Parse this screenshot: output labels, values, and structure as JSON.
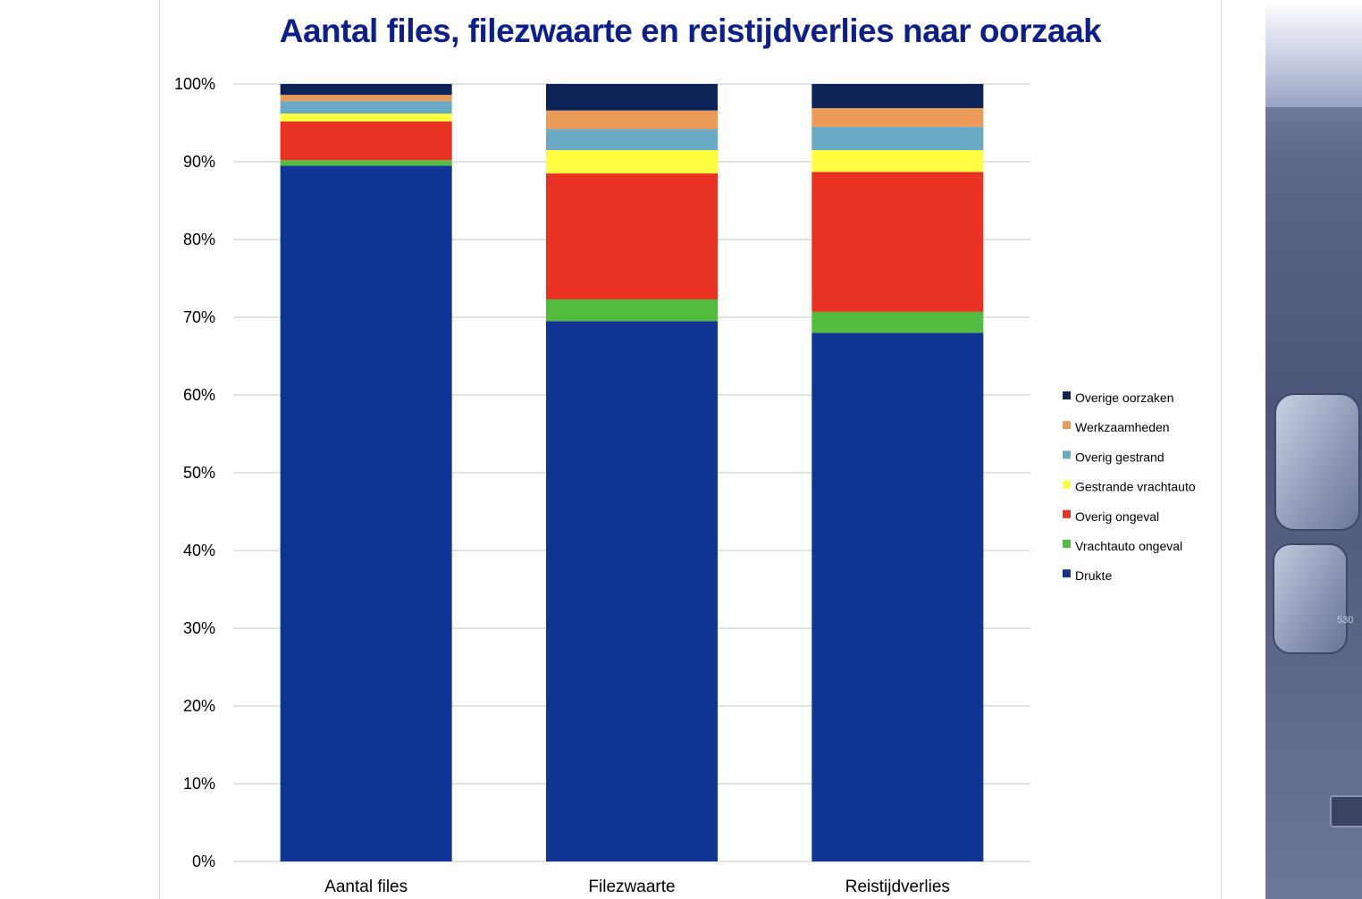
{
  "chart_data": {
    "type": "bar",
    "stacked": true,
    "title": "Aantal files, filezwaarte en reistijdverlies naar oorzaak",
    "categories": [
      "Aantal files",
      "Filezwaarte",
      "Reistijdverlies"
    ],
    "series": [
      {
        "name": "Drukte",
        "color": "#0f3494",
        "values": [
          89.5,
          69.5,
          68.0
        ]
      },
      {
        "name": "Vrachtauto ongeval",
        "color": "#52bd3d",
        "values": [
          0.7,
          2.8,
          2.7
        ]
      },
      {
        "name": "Overig ongeval",
        "color": "#ea3223",
        "values": [
          5.0,
          16.2,
          18.0
        ]
      },
      {
        "name": "Gestrande vrachtauto",
        "color": "#fdfe3f",
        "values": [
          1.0,
          3.0,
          2.8
        ]
      },
      {
        "name": "Overig gestrand",
        "color": "#6aa9c3",
        "values": [
          1.6,
          2.7,
          3.0
        ]
      },
      {
        "name": "Werkzaamheden",
        "color": "#ec9a57",
        "values": [
          0.8,
          2.4,
          2.4
        ]
      },
      {
        "name": "Overige oorzaken",
        "color": "#0c2357",
        "values": [
          1.4,
          3.4,
          3.1
        ]
      }
    ],
    "ylim": [
      0,
      100
    ],
    "yticks": [
      "0%",
      "10%",
      "20%",
      "30%",
      "40%",
      "50%",
      "60%",
      "70%",
      "80%",
      "90%",
      "100%"
    ],
    "grid": true,
    "legend_position": "right"
  }
}
